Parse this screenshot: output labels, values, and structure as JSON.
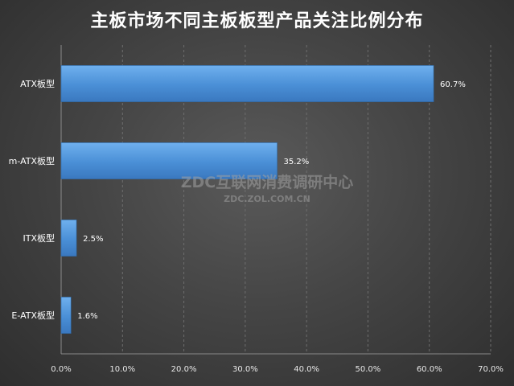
{
  "chart_data": {
    "type": "bar",
    "orientation": "horizontal",
    "title": "主板市场不同主板板型产品关注比例分布",
    "categories": [
      "ATX板型",
      "m-ATX板型",
      "ITX板型",
      "E-ATX板型"
    ],
    "values": [
      60.7,
      35.2,
      2.5,
      1.6
    ],
    "data_labels": [
      "60.7%",
      "35.2%",
      "2.5%",
      "1.6%"
    ],
    "xlim": [
      0,
      70
    ],
    "x_ticks": [
      "0.0%",
      "10.0%",
      "20.0%",
      "30.0%",
      "40.0%",
      "50.0%",
      "60.0%",
      "70.0%"
    ],
    "grid": true,
    "legend": "none",
    "bar_color": "#4a8fd6"
  },
  "watermark": {
    "line1": "ZDC互联网消费调研中心",
    "line2": "ZDC.ZOL.COM.CN"
  }
}
